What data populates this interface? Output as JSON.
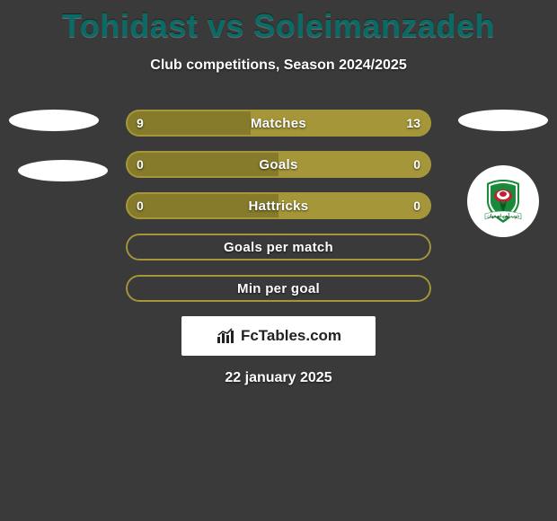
{
  "title": "Tohidast vs Soleimanzadeh",
  "subtitle": "Club competitions, Season 2024/2025",
  "date": "22 january 2025",
  "footer_brand": "FcTables.com",
  "colors": {
    "title": "#0a6b66",
    "background": "#3a3a3a",
    "left_fill": "#857b2b",
    "right_fill": "#a59739",
    "border": "#a59739",
    "white": "#ffffff"
  },
  "rows": [
    {
      "label": "Matches",
      "left_val": "9",
      "right_val": "13",
      "left_pct": 40.9,
      "right_pct": 59.1,
      "show_vals": true
    },
    {
      "label": "Goals",
      "left_val": "0",
      "right_val": "0",
      "left_pct": 50,
      "right_pct": 50,
      "show_vals": true
    },
    {
      "label": "Hattricks",
      "left_val": "0",
      "right_val": "0",
      "left_pct": 50,
      "right_pct": 50,
      "show_vals": true
    },
    {
      "label": "Goals per match",
      "left_val": "",
      "right_val": "",
      "left_pct": 0,
      "right_pct": 0,
      "show_vals": false
    },
    {
      "label": "Min per goal",
      "left_val": "",
      "right_val": "",
      "left_pct": 0,
      "right_pct": 0,
      "show_vals": false
    }
  ],
  "club_logo": {
    "circle_bg": "#ffffff",
    "shield_green": "#1a8a3a",
    "shield_dark": "#0a5a24",
    "flower_red": "#c02030",
    "flower_white": "#ffffff",
    "ribbon_text": "ذوب آهن اصفهان"
  }
}
